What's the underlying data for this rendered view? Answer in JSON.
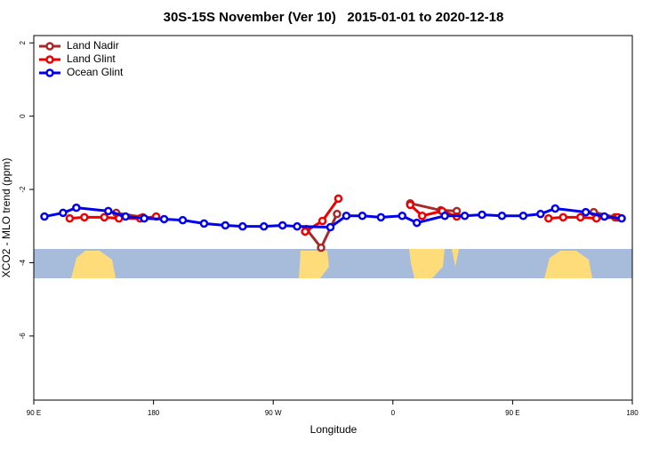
{
  "chart_data": {
    "type": "line",
    "title": "30S-15S November (Ver 10)   2015-01-01 to 2020-12-18",
    "xlabel": "Longitude",
    "ylabel": "XCO2 - MLO trend (ppm)",
    "xlim": [
      90,
      540
    ],
    "ylim": [
      -7.75,
      2.2
    ],
    "xticks": [
      {
        "value": 90,
        "label": "90 E"
      },
      180,
      {
        "value": 270,
        "label": "90 W"
      },
      {
        "value": 360,
        "label": "0"
      },
      {
        "value": 450,
        "label": "90 E"
      },
      {
        "value": 540,
        "label": "180"
      }
    ],
    "yticks": [
      2,
      0,
      -2,
      -4,
      -6
    ],
    "legend": "top-left",
    "series": [
      {
        "name": "Land Nadir",
        "color": "#a52a2a",
        "x": [
          152,
          172,
          null,
          295,
          306,
          318,
          null,
          373,
          396,
          408,
          null,
          511,
          527
        ],
        "values": [
          -2.64,
          -2.76,
          null,
          -3.08,
          -3.59,
          -2.67,
          null,
          -2.38,
          -2.57,
          -2.59,
          null,
          -2.62,
          -2.76
        ]
      },
      {
        "name": "Land Glint",
        "color": "#ee0000",
        "x": [
          117,
          128,
          143,
          154,
          170,
          182,
          null,
          294,
          307,
          319,
          null,
          373,
          382,
          397,
          408,
          null,
          477,
          488,
          501,
          513,
          529
        ],
        "values": [
          -2.79,
          -2.76,
          -2.76,
          -2.79,
          -2.79,
          -2.74,
          null,
          -3.15,
          -2.86,
          -2.25,
          null,
          -2.42,
          -2.72,
          -2.59,
          -2.74,
          null,
          -2.79,
          -2.76,
          -2.76,
          -2.79,
          -2.76
        ]
      },
      {
        "name": "Ocean Glint",
        "color": "#0000ee",
        "x": [
          98,
          112,
          122,
          146,
          159,
          173,
          188,
          202,
          218,
          234,
          247,
          263,
          277,
          288,
          313,
          325,
          337,
          351,
          367,
          378,
          399,
          414,
          427,
          442,
          458,
          471,
          482,
          505,
          519,
          532
        ],
        "values": [
          -2.74,
          -2.64,
          -2.5,
          -2.59,
          -2.74,
          -2.79,
          -2.81,
          -2.84,
          -2.93,
          -2.98,
          -3.01,
          -3.01,
          -2.98,
          -3.01,
          -3.03,
          -2.72,
          -2.72,
          -2.76,
          -2.72,
          -2.91,
          -2.72,
          -2.72,
          -2.69,
          -2.72,
          -2.72,
          -2.67,
          -2.52,
          -2.62,
          -2.74,
          -2.79
        ]
      }
    ]
  }
}
